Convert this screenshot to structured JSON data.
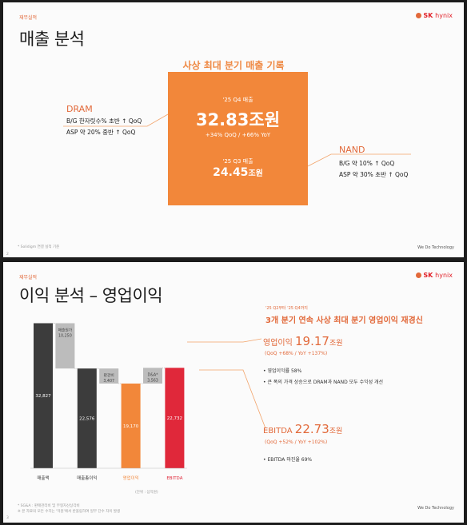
{
  "slide1": {
    "section_tag": "재무실적",
    "title": "매출 분석",
    "logo_text": "SK",
    "logo_sub": "hynix",
    "record_title": "사상 최대 분기 매출 기록",
    "box": {
      "q4_label": "'25 Q4 매출",
      "q4_value": "32.83조원",
      "growth": "+34% QoQ / +66% YoY",
      "q3_label": "'25 Q3 매출",
      "q3_number": "24.45",
      "q3_unit": "조원"
    },
    "dram": {
      "title": "DRAM",
      "line1": "B/G 한자릿수% 초반 ↑ QoQ",
      "line2": "ASP 약 20% 중반 ↑ QoQ"
    },
    "nand": {
      "title": "NAND",
      "line1": "B/G 약 10% ↑ QoQ",
      "line2": "ASP 약 30% 초반 ↑ QoQ"
    },
    "footnote": "* Solidigm 연결 실적 기준",
    "slogan": "We Do Technology",
    "page": "2"
  },
  "slide2": {
    "section_tag": "재무실적",
    "title": "이익 분석 – 영업이익",
    "logo_text": "SK",
    "logo_sub": "hynix",
    "headline_sub": "'25 Q2부터 '25 Q4까지",
    "headline": "3개 분기 연속 사상 최대 분기 영업이익 재경신",
    "op_label": "영업이익",
    "op_value": "19.17",
    "op_unit": "조원",
    "op_growth": "(QoQ +68% / YoY +137%)",
    "op_bullet1": "• 영업이익률 58%",
    "op_bullet2": "• 큰 폭의 가격 상승으로 DRAM과 NAND 모두 수익성 개선",
    "ebitda_label": "EBITDA",
    "ebitda_value": "22.73",
    "ebitda_unit": "조원",
    "ebitda_growth": "(QoQ +52% / YoY +102%)",
    "ebitda_bullet": "• EBITDA 마진율 69%",
    "unit_note": "(단위 : 십억원)",
    "footnote1": "* SG&A : 판매관리비 및 무형자산상각비",
    "footnote2": "※ 본 자료의 모든 수치는 '억원'에서 반올림하여 일부 단수 차이 발생",
    "slogan": "We Do Technology",
    "page": "3"
  },
  "chart_data": {
    "type": "bar",
    "subtype": "waterfall",
    "categories": [
      "매출액",
      "매출원가",
      "매출총이익",
      "판관비",
      "영업이익",
      "D&A*",
      "EBITDA"
    ],
    "x_labels": [
      "매출액",
      "",
      "매출총이익",
      "",
      "영업이익",
      "",
      "EBITDA"
    ],
    "float_labels": [
      "",
      "매출원가",
      "",
      "판관비",
      "",
      "D&A*",
      ""
    ],
    "values": [
      32827,
      10250,
      22576,
      3407,
      19170,
      3563,
      22732
    ],
    "value_labels": [
      "32,827",
      "10,250",
      "22,576",
      "3,407",
      "19,170",
      "3,563",
      "22,732"
    ],
    "bar_kinds": [
      "total",
      "decrease",
      "total",
      "decrease",
      "total",
      "increase",
      "total"
    ],
    "bar_colors": [
      "#3c3c3c",
      "#bcbcbc",
      "#3c3c3c",
      "#bcbcbc",
      "#f2873a",
      "#bcbcbc",
      "#e0283a"
    ],
    "label_colors": [
      "#333333",
      "#333333",
      "#333333",
      "#333333",
      "#f2873a",
      "#333333",
      "#e0283a"
    ],
    "ylim": [
      0,
      34000
    ],
    "ylabel": "",
    "xlabel": "",
    "title": ""
  }
}
